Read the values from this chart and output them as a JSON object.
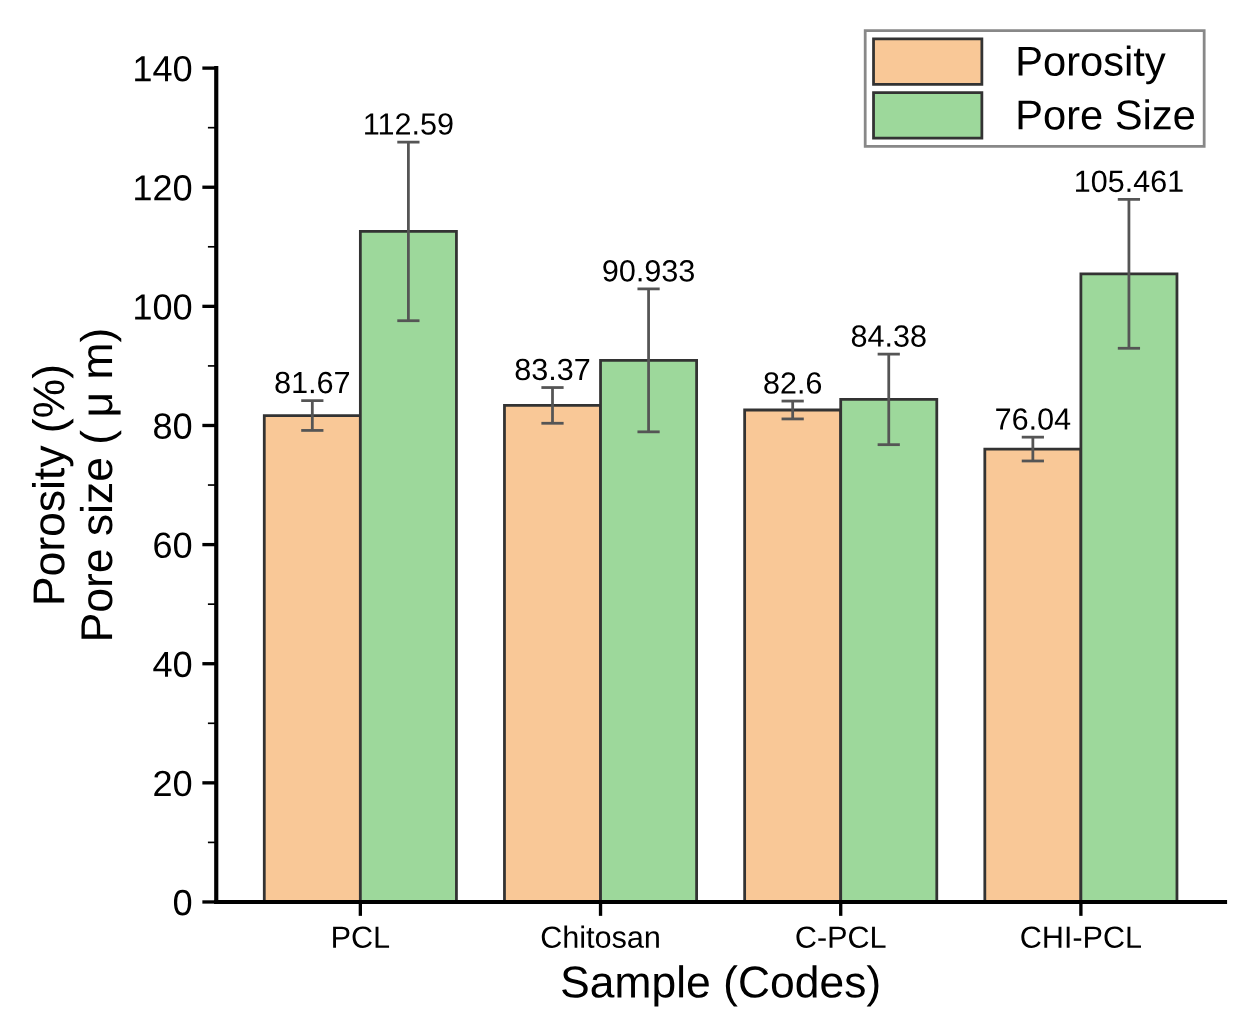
{
  "chart_data": {
    "type": "bar",
    "xlabel": "Sample (Codes)",
    "ylabel": "Porosity (%)\nPore size ( μ m)",
    "categories": [
      "PCL",
      "Chitosan",
      "C-PCL",
      "CHI-PCL"
    ],
    "series": [
      {
        "name": "Porosity",
        "color": "#f9c897",
        "values": [
          81.67,
          83.37,
          82.6,
          76.04
        ],
        "errors": [
          2.5,
          3,
          1.5,
          2
        ]
      },
      {
        "name": "Pore Size",
        "color": "#9dd89b",
        "values": [
          112.59,
          90.933,
          84.38,
          105.461
        ],
        "errors": [
          15,
          12,
          7.6,
          12.5
        ]
      }
    ],
    "ylim": [
      0,
      140
    ],
    "yticks": [
      0,
      20,
      40,
      60,
      80,
      100,
      120,
      140
    ],
    "data_labels": true,
    "legend": "top right",
    "grid": false
  }
}
